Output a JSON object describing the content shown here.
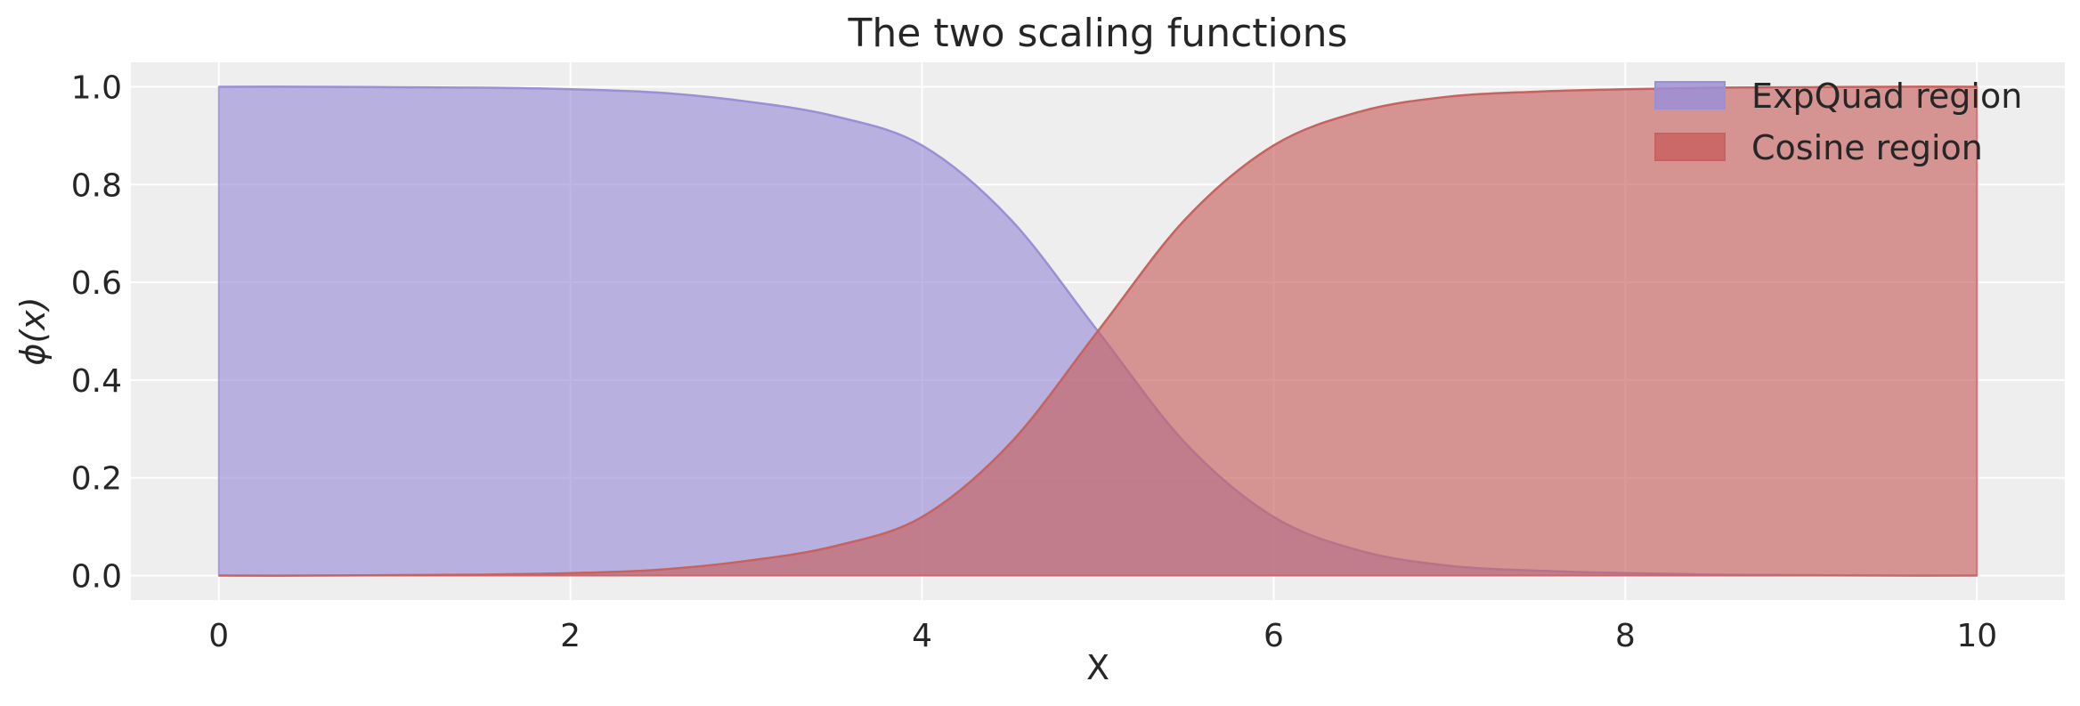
{
  "chart_data": {
    "type": "area",
    "title": "The two scaling functions",
    "xlabel": "X",
    "ylabel": "ϕ(x)",
    "xlim": [
      -0.5,
      10.5
    ],
    "ylim": [
      -0.05,
      1.05
    ],
    "x_ticks": [
      0,
      2,
      4,
      6,
      8,
      10
    ],
    "y_ticks": [
      0.0,
      0.2,
      0.4,
      0.6,
      0.8,
      1.0
    ],
    "x_tick_labels": [
      "0",
      "2",
      "4",
      "6",
      "8",
      "10"
    ],
    "y_tick_labels": [
      "0.0",
      "0.2",
      "0.4",
      "0.6",
      "0.8",
      "1.0"
    ],
    "grid": true,
    "legend_position": "top-right",
    "x": [
      0,
      0.5,
      1,
      1.5,
      2,
      2.5,
      3,
      3.5,
      4,
      4.5,
      5,
      5.5,
      6,
      6.5,
      7,
      7.5,
      8,
      8.5,
      9,
      9.5,
      10
    ],
    "series": [
      {
        "name": "ExpQuad region",
        "color": "#9b8fd6",
        "values": [
          1.0,
          1.0,
          0.999,
          0.998,
          0.995,
          0.988,
          0.97,
          0.94,
          0.88,
          0.73,
          0.5,
          0.27,
          0.12,
          0.05,
          0.02,
          0.01,
          0.005,
          0.002,
          0.001,
          0.0,
          0.0
        ]
      },
      {
        "name": "Cosine region",
        "color": "#c8625f",
        "values": [
          0.0,
          0.0,
          0.001,
          0.002,
          0.005,
          0.012,
          0.03,
          0.06,
          0.12,
          0.27,
          0.5,
          0.73,
          0.88,
          0.95,
          0.98,
          0.99,
          0.995,
          0.998,
          0.999,
          1.0,
          1.0
        ]
      }
    ]
  }
}
